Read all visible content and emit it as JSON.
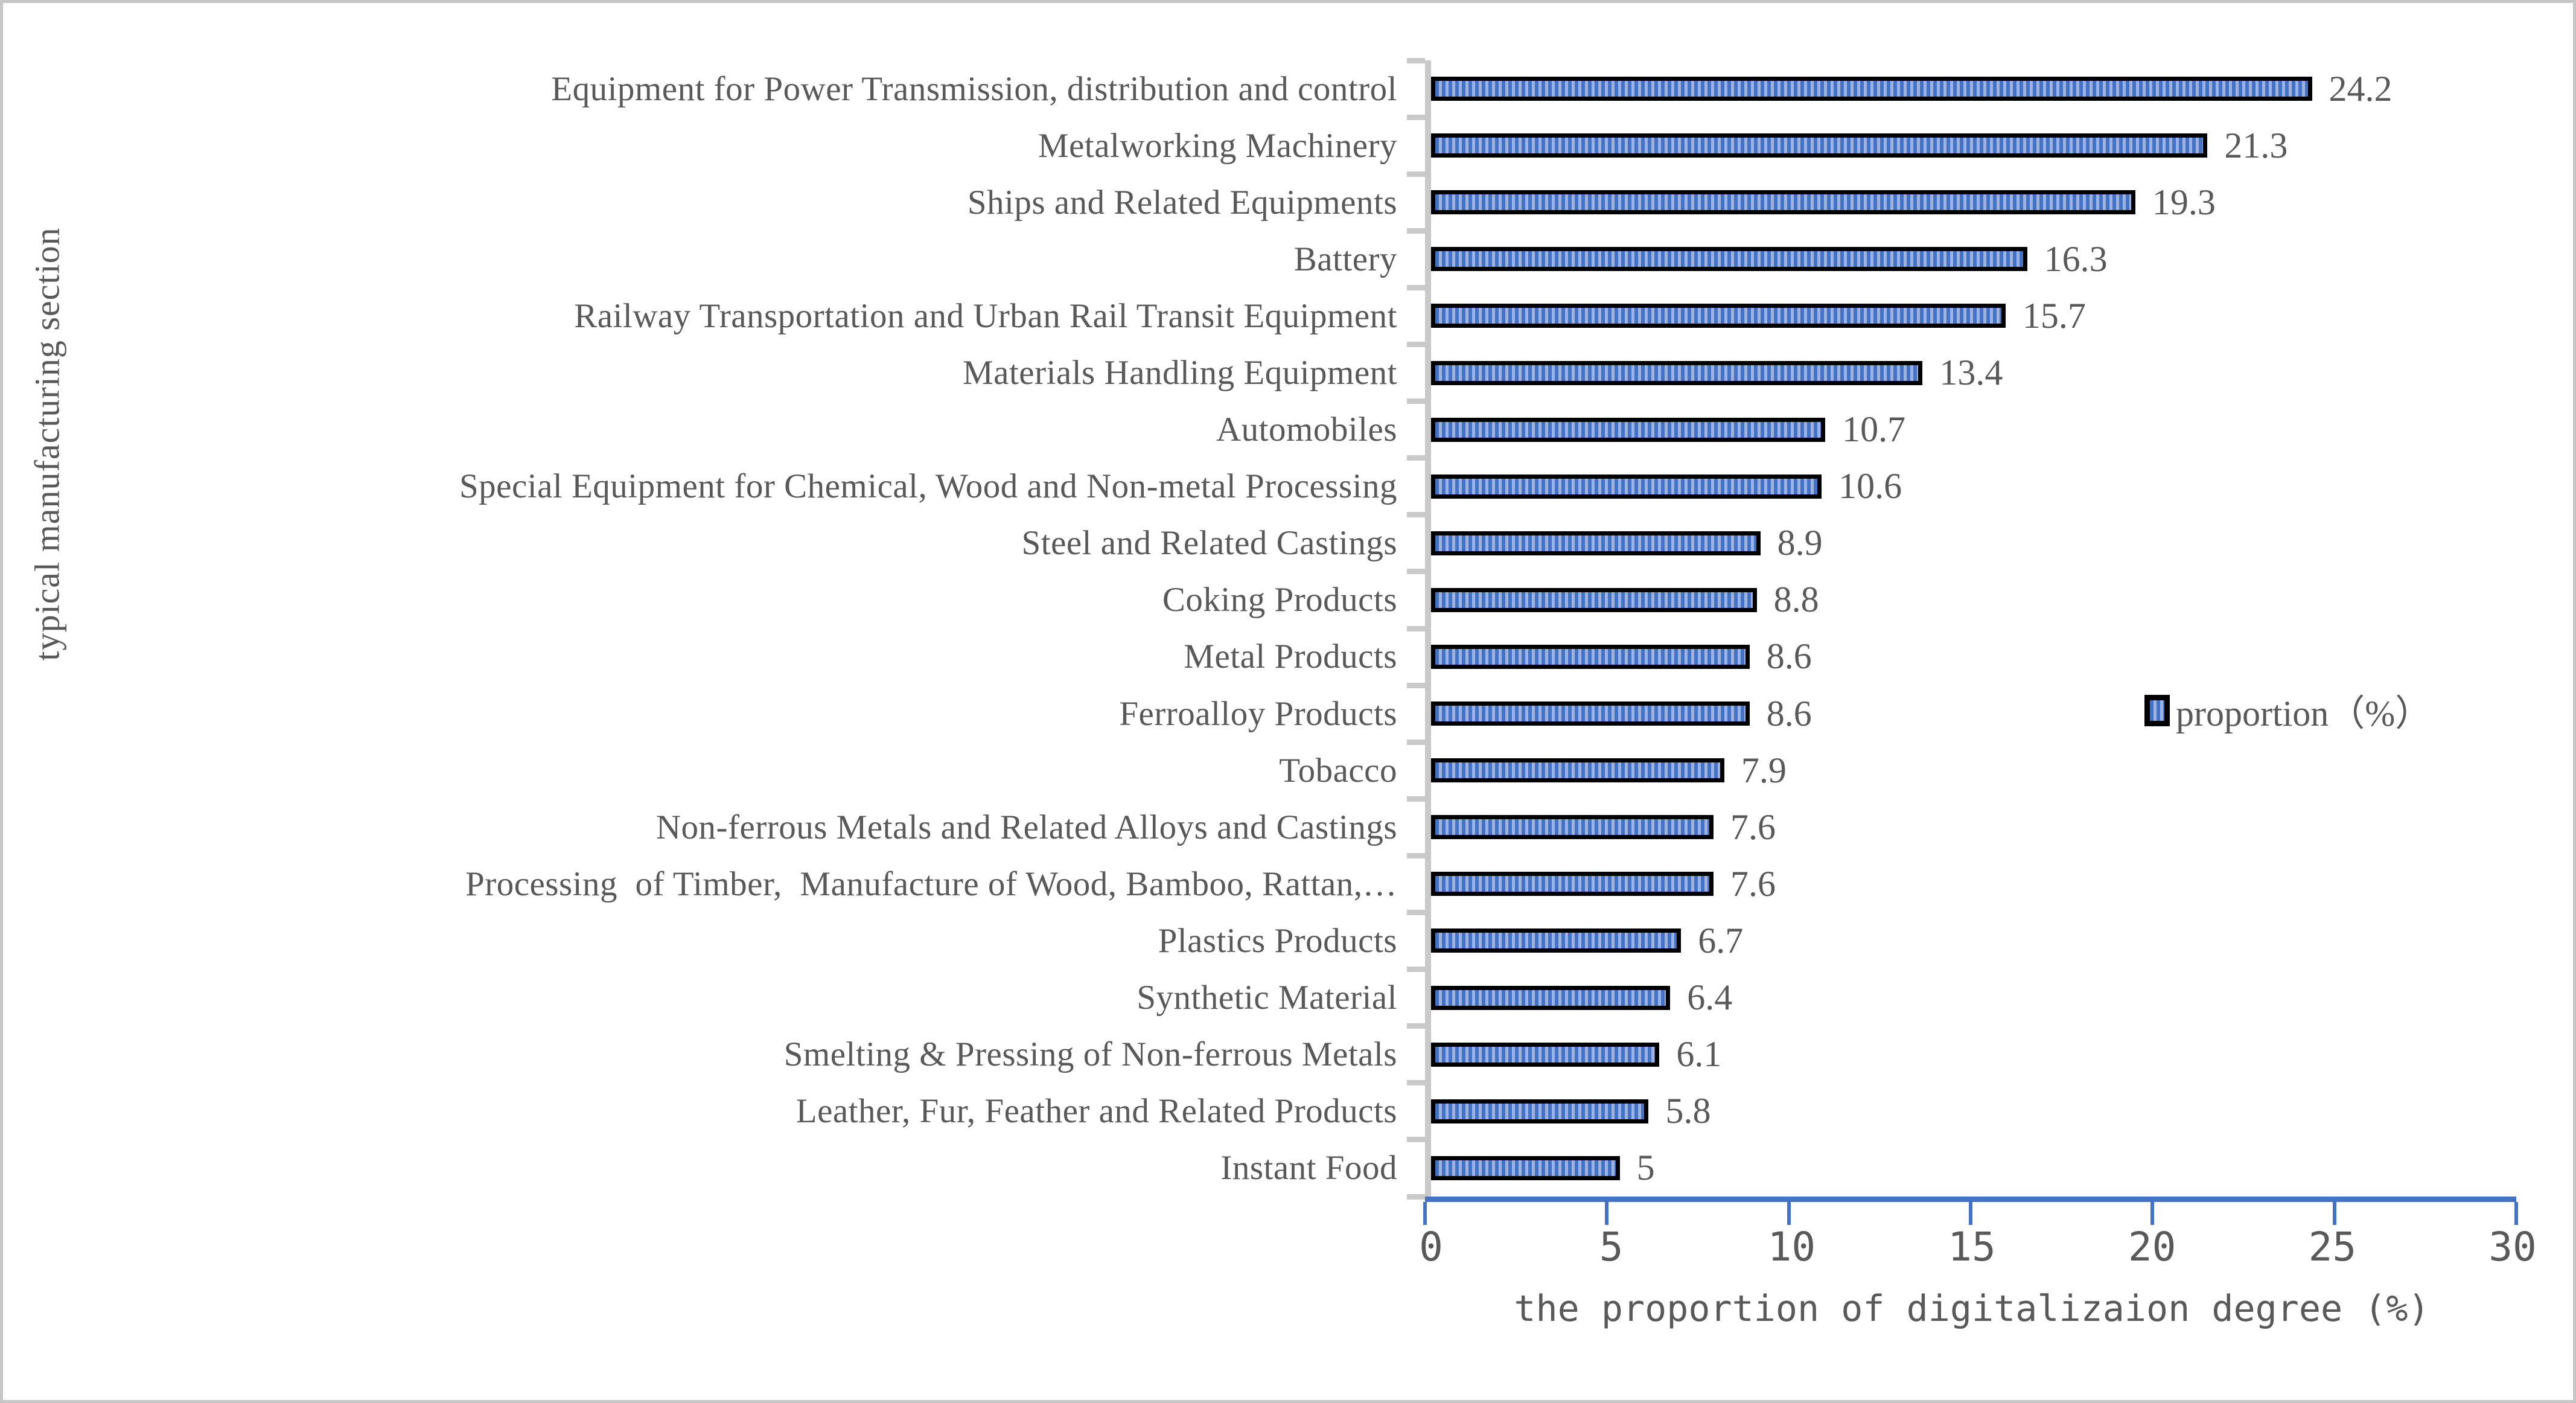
{
  "chart_data": {
    "type": "bar",
    "orientation": "horizontal",
    "xlabel": "the proportion of digitalizaion degree (%)",
    "ylabel": "typical manufacturing section",
    "legend_label": "proportion（%）",
    "xlim": [
      0,
      30
    ],
    "xticks": [
      0,
      5,
      10,
      15,
      20,
      25,
      30
    ],
    "grid": false,
    "legend_position": "center-right",
    "categories": [
      "Equipment for Power Transmission, distribution and control",
      "Metalworking Machinery",
      "Ships and Related Equipments",
      "Battery",
      "Railway Transportation and Urban Rail Transit Equipment",
      "Materials Handling Equipment",
      "Automobiles",
      "Special Equipment for Chemical, Wood and Non-metal Processing",
      "Steel and Related Castings",
      "Coking Products",
      "Metal Products",
      "Ferroalloy Products",
      "Tobacco",
      "Non-ferrous Metals and Related Alloys and Castings",
      "Processing  of Timber,  Manufacture of Wood, Bamboo, Rattan,…",
      "Plastics Products",
      "Synthetic Material",
      "Smelting & Pressing of Non-ferrous Metals",
      "Leather, Fur, Feather and Related Products",
      "Instant Food"
    ],
    "values": [
      24.2,
      21.3,
      19.3,
      16.3,
      15.7,
      13.4,
      10.7,
      10.6,
      8.9,
      8.8,
      8.6,
      8.6,
      7.9,
      7.6,
      7.6,
      6.7,
      6.4,
      6.1,
      5.8,
      5
    ],
    "value_labels": [
      "24.2",
      "21.3",
      "19.3",
      "16.3",
      "15.7",
      "13.4",
      "10.7",
      "10.6",
      "8.9",
      "8.8",
      "8.6",
      "8.6",
      "7.9",
      "7.6",
      "7.6",
      "6.7",
      "6.4",
      "6.1",
      "5.8",
      "5"
    ]
  },
  "colors": {
    "text": "#595959",
    "bar_stripe_dark": "#4472C4",
    "bar_stripe_light": "#9BB2E2",
    "bar_border": "#000000",
    "y_axis_gray": "#C9C9C9",
    "x_axis_blue": "#4472C4"
  }
}
